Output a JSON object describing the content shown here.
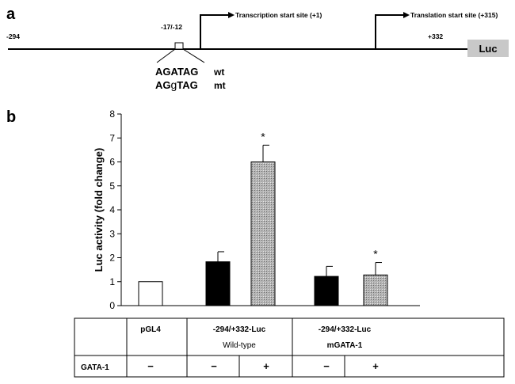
{
  "panel_a": {
    "label": "a",
    "pos_start": "-294",
    "pos_element": "-17/-12",
    "pos_end": "+332",
    "transcription_label": "Transcription start site (+1)",
    "translation_label": "Translation start site (+315)",
    "luc_label": "Luc",
    "seq_wt": "AGATAG",
    "seq_wt_tag": "wt",
    "seq_mt_prefix": "AG",
    "seq_mt_mut": "g",
    "seq_mt_suffix": "TAG",
    "seq_mt_tag": "mt"
  },
  "panel_b": {
    "label": "b",
    "table": {
      "row_gata_label": "GATA-1",
      "groups": [
        "pGL4",
        "-294/+332-Luc",
        "-294/+332-Luc"
      ],
      "subgroups": [
        "Wild-type",
        "mGATA-1"
      ],
      "gata_marks": [
        "−",
        "−",
        "+",
        "−",
        "+"
      ]
    }
  },
  "colors": {
    "ink": "#000000",
    "luc_box": "#c8c8c8",
    "hatched_bar": "#b0b0b0"
  },
  "chart_data": {
    "type": "bar",
    "ylabel": "Luc activity (fold change)",
    "ylim": [
      0,
      8
    ],
    "yticks": [
      "0",
      "1",
      "2",
      "3",
      "4",
      "5",
      "6",
      "7",
      "8"
    ],
    "bars": [
      {
        "value": 1.0,
        "error": 0,
        "fill": "white",
        "mark": ""
      },
      {
        "value": 1.83,
        "error": 0.42,
        "fill": "black",
        "mark": ""
      },
      {
        "value": 6.0,
        "error": 0.7,
        "fill": "hatch",
        "mark": "*"
      },
      {
        "value": 1.22,
        "error": 0.42,
        "fill": "black",
        "mark": ""
      },
      {
        "value": 1.28,
        "error": 0.52,
        "fill": "hatch",
        "mark": "*"
      }
    ]
  }
}
